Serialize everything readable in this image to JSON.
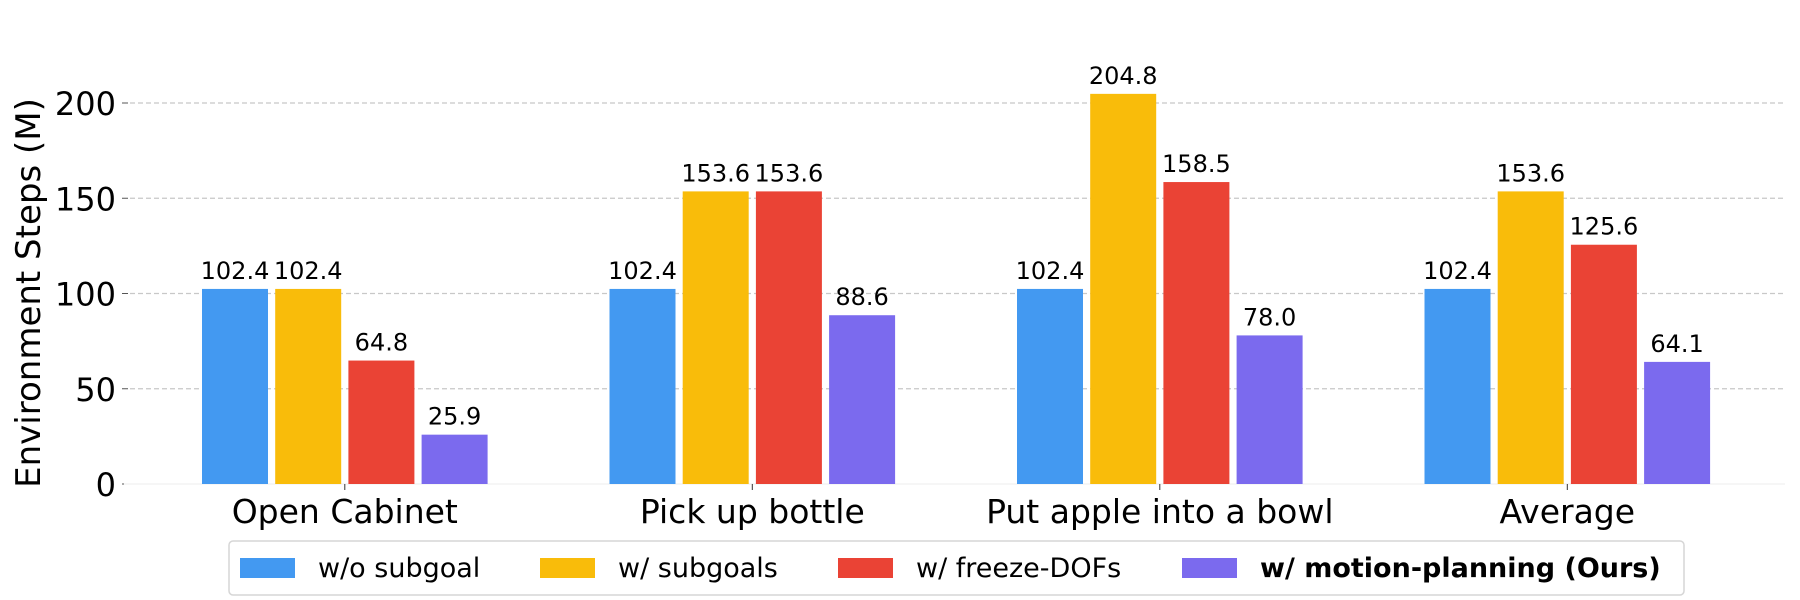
{
  "chart_data": {
    "type": "bar",
    "title": "",
    "xlabel": "",
    "ylabel": "Environment Steps (M)",
    "ylim": [
      0,
      220
    ],
    "yticks": [
      0,
      50,
      100,
      150,
      200
    ],
    "grid": "y-dashed",
    "legend_placement": "bottom-center",
    "categories": [
      "Open Cabinet",
      "Pick up bottle",
      "Put apple into a bowl",
      "Average"
    ],
    "series": [
      {
        "name": "w/o subgoal",
        "color": "#4399F1",
        "bold": false,
        "values": [
          102.4,
          102.4,
          102.4,
          102.4
        ]
      },
      {
        "name": "w/ subgoals",
        "color": "#F9BC0A",
        "bold": false,
        "values": [
          102.4,
          153.6,
          204.8,
          153.6
        ]
      },
      {
        "name": "w/ freeze-DOFs",
        "color": "#EA4335",
        "bold": false,
        "values": [
          64.8,
          153.6,
          158.5,
          125.6
        ]
      },
      {
        "name": "w/ motion-planning (Ours)",
        "color": "#7B6AEE",
        "bold": true,
        "values": [
          25.9,
          88.6,
          78.0,
          64.1
        ]
      }
    ]
  }
}
